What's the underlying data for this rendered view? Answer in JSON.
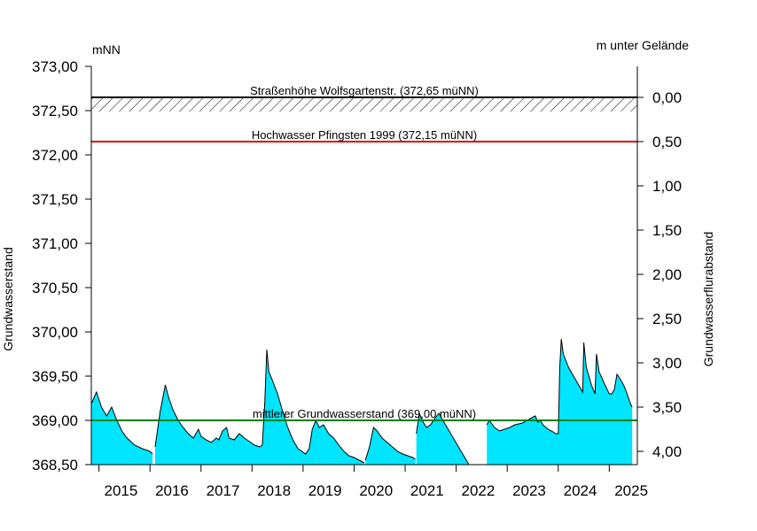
{
  "chart_data": {
    "type": "area",
    "left_unit": "mNN",
    "right_unit": "m unter Gelände",
    "ylabel_left": "Grundwasserstand",
    "ylabel_right": "Grundwasserflurabstand",
    "ylim": [
      368.5,
      373.0
    ],
    "yticks_left": [
      "373,00",
      "372,50",
      "372,00",
      "371,50",
      "371,00",
      "370,50",
      "370,00",
      "369,50",
      "369,00",
      "368,50"
    ],
    "yticks_left_values": [
      373.0,
      372.5,
      372.0,
      371.5,
      371.0,
      370.5,
      370.0,
      369.5,
      369.0,
      368.5
    ],
    "yticks_right": [
      "0,00",
      "0,50",
      "1,00",
      "1,50",
      "2,00",
      "2,50",
      "3,00",
      "3,50",
      "4,00"
    ],
    "yticks_right_values": [
      0,
      0.5,
      1,
      1.5,
      2,
      2.5,
      3,
      3.5,
      4
    ],
    "ground_level": 372.65,
    "xlim": [
      2014.85,
      2025.55
    ],
    "x_labels": [
      "2015",
      "2016",
      "2017",
      "2018",
      "2019",
      "2020",
      "2021",
      "2022",
      "2023",
      "2024",
      "2025"
    ],
    "x_label_positions": [
      2015.5,
      2016.5,
      2017.5,
      2018.5,
      2019.5,
      2020.5,
      2021.5,
      2022.5,
      2023.5,
      2024.5,
      2025.5
    ],
    "reference_lines": [
      {
        "label": "Straßenhöhe Wolfsgartenstr. (372,65 müNN)",
        "value": 372.65,
        "color": "#000000",
        "hatched": true
      },
      {
        "label": "Hochwasser Pfingsten 1999 (372,15 müNN)",
        "value": 372.15,
        "color": "#e00000",
        "hatched": false
      },
      {
        "label": "mittlerer Grundwasserstand (369,00 müNN)",
        "value": 369.0,
        "color": "#008000",
        "hatched": false
      }
    ],
    "fill_color": "#00e5ff",
    "series": [
      {
        "values": [
          [
            2014.86,
            369.2
          ],
          [
            2014.95,
            369.32
          ],
          [
            2015.05,
            369.15
          ],
          [
            2015.15,
            369.05
          ],
          [
            2015.25,
            369.15
          ],
          [
            2015.35,
            369.0
          ],
          [
            2015.45,
            368.88
          ],
          [
            2015.55,
            368.8
          ],
          [
            2015.7,
            368.72
          ],
          [
            2015.85,
            368.68
          ],
          [
            2016.0,
            368.65
          ],
          [
            2016.05,
            368.62
          ]
        ]
      },
      {
        "values": [
          [
            2016.1,
            368.7
          ],
          [
            2016.2,
            369.1
          ],
          [
            2016.3,
            369.4
          ],
          [
            2016.37,
            369.25
          ],
          [
            2016.45,
            369.12
          ],
          [
            2016.55,
            369.0
          ],
          [
            2016.65,
            368.92
          ],
          [
            2016.75,
            368.85
          ],
          [
            2016.85,
            368.8
          ],
          [
            2016.95,
            368.9
          ],
          [
            2017.0,
            368.82
          ],
          [
            2017.1,
            368.78
          ],
          [
            2017.2,
            368.75
          ],
          [
            2017.3,
            368.8
          ],
          [
            2017.35,
            368.78
          ],
          [
            2017.42,
            368.88
          ],
          [
            2017.5,
            368.92
          ],
          [
            2017.55,
            368.8
          ],
          [
            2017.65,
            368.78
          ],
          [
            2017.75,
            368.85
          ],
          [
            2017.85,
            368.8
          ],
          [
            2017.95,
            368.76
          ],
          [
            2018.05,
            368.72
          ],
          [
            2018.15,
            368.7
          ],
          [
            2018.2,
            368.72
          ],
          [
            2018.25,
            369.2
          ],
          [
            2018.29,
            369.8
          ],
          [
            2018.33,
            369.55
          ],
          [
            2018.4,
            369.45
          ],
          [
            2018.5,
            369.3
          ],
          [
            2018.6,
            369.1
          ],
          [
            2018.7,
            368.92
          ],
          [
            2018.8,
            368.78
          ],
          [
            2018.9,
            368.68
          ],
          [
            2019.0,
            368.64
          ],
          [
            2019.05,
            368.62
          ],
          [
            2019.12,
            368.68
          ],
          [
            2019.18,
            368.9
          ],
          [
            2019.25,
            369.0
          ],
          [
            2019.32,
            368.92
          ],
          [
            2019.4,
            368.95
          ],
          [
            2019.5,
            368.85
          ],
          [
            2019.6,
            368.8
          ],
          [
            2019.7,
            368.72
          ],
          [
            2019.8,
            368.65
          ],
          [
            2019.9,
            368.6
          ],
          [
            2020.0,
            368.58
          ],
          [
            2020.1,
            368.55
          ],
          [
            2020.2,
            368.52
          ]
        ]
      },
      {
        "values": [
          [
            2020.22,
            368.55
          ],
          [
            2020.3,
            368.7
          ],
          [
            2020.38,
            368.92
          ],
          [
            2020.45,
            368.88
          ],
          [
            2020.55,
            368.8
          ],
          [
            2020.65,
            368.75
          ],
          [
            2020.75,
            368.7
          ],
          [
            2020.85,
            368.65
          ],
          [
            2020.95,
            368.62
          ],
          [
            2021.05,
            368.6
          ],
          [
            2021.15,
            368.58
          ],
          [
            2021.2,
            368.56
          ]
        ]
      },
      {
        "values": [
          [
            2021.22,
            368.85
          ],
          [
            2021.28,
            369.08
          ],
          [
            2021.33,
            369.0
          ],
          [
            2021.42,
            368.92
          ],
          [
            2021.5,
            368.95
          ],
          [
            2021.58,
            369.02
          ],
          [
            2021.66,
            369.08
          ],
          [
            2021.72,
            369.02
          ],
          [
            2022.25,
            368.5
          ]
        ]
      },
      {
        "values": [
          [
            2022.6,
            368.95
          ],
          [
            2022.65,
            369.0
          ],
          [
            2022.75,
            368.92
          ],
          [
            2022.85,
            368.88
          ],
          [
            2022.95,
            368.9
          ],
          [
            2023.05,
            368.92
          ],
          [
            2023.15,
            368.95
          ],
          [
            2023.3,
            368.97
          ],
          [
            2023.45,
            369.02
          ],
          [
            2023.55,
            369.05
          ],
          [
            2023.6,
            368.98
          ],
          [
            2023.65,
            369.0
          ],
          [
            2023.7,
            368.95
          ],
          [
            2023.8,
            368.9
          ],
          [
            2023.9,
            368.87
          ],
          [
            2023.95,
            368.85
          ],
          [
            2024.0,
            368.85
          ],
          [
            2024.03,
            369.6
          ],
          [
            2024.06,
            369.92
          ],
          [
            2024.1,
            369.75
          ],
          [
            2024.2,
            369.6
          ],
          [
            2024.3,
            369.5
          ],
          [
            2024.4,
            369.4
          ],
          [
            2024.48,
            369.32
          ],
          [
            2024.5,
            369.88
          ],
          [
            2024.55,
            369.6
          ],
          [
            2024.65,
            369.4
          ],
          [
            2024.72,
            369.3
          ],
          [
            2024.75,
            369.75
          ],
          [
            2024.8,
            369.55
          ],
          [
            2024.9,
            369.42
          ],
          [
            2025.0,
            369.3
          ],
          [
            2025.05,
            369.3
          ],
          [
            2025.1,
            369.35
          ],
          [
            2025.15,
            369.52
          ],
          [
            2025.2,
            369.48
          ],
          [
            2025.28,
            369.4
          ],
          [
            2025.35,
            369.3
          ],
          [
            2025.42,
            369.18
          ],
          [
            2025.45,
            369.15
          ]
        ]
      }
    ]
  }
}
